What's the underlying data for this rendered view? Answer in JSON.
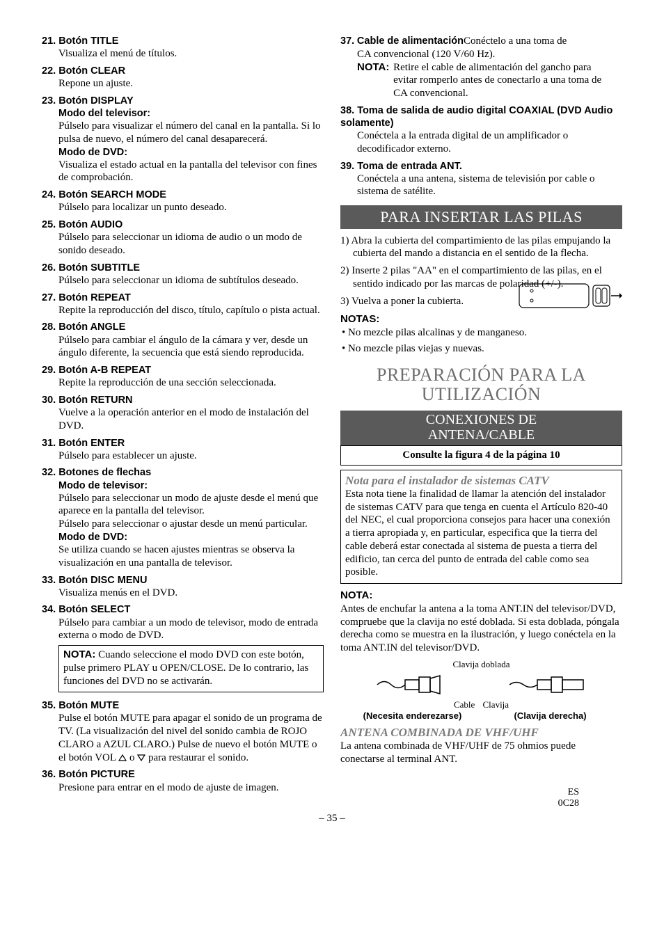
{
  "left_items": [
    {
      "num": "21.",
      "title": "Botón TITLE",
      "bodies": [
        "Visualiza el menú de títulos."
      ]
    },
    {
      "num": "22.",
      "title": "Botón CLEAR",
      "bodies": [
        "Repone un ajuste."
      ]
    },
    {
      "num": "23.",
      "title": "Botón DISPLAY",
      "subs": [
        {
          "sub": "Modo del televisor:",
          "bodies": [
            "Púlselo para visualizar el número del canal en la pantalla. Si lo pulsa de nuevo, el número del canal desaparecerá."
          ]
        },
        {
          "sub": "Modo de DVD:",
          "bodies": [
            "Visualiza el estado actual en la pantalla del televisor con fines de comprobación."
          ]
        }
      ]
    },
    {
      "num": "24.",
      "title": "Botón SEARCH MODE",
      "bodies": [
        "Púlselo para localizar un punto deseado."
      ]
    },
    {
      "num": "25.",
      "title": "Botón AUDIO",
      "bodies": [
        "Púlselo para seleccionar un idioma de audio o un modo de sonido deseado."
      ]
    },
    {
      "num": "26.",
      "title": "Botón SUBTITLE",
      "bodies": [
        "Púlselo para seleccionar un idioma de subtítulos deseado."
      ]
    },
    {
      "num": "27.",
      "title": "Botón REPEAT",
      "bodies": [
        "Repite la reproducción del disco, título, capítulo o pista actual."
      ]
    },
    {
      "num": "28.",
      "title": "Botón ANGLE",
      "bodies": [
        "Púlselo para cambiar el ángulo de la cámara y ver, desde un ángulo diferente, la secuencia que está siendo reproducida."
      ]
    },
    {
      "num": "29.",
      "title": "Botón A-B REPEAT",
      "bodies": [
        "Repite la reproducción de una sección seleccionada."
      ]
    },
    {
      "num": "30.",
      "title": "Botón RETURN",
      "bodies": [
        "Vuelve a la operación anterior en el modo de instalación del DVD."
      ]
    },
    {
      "num": "31.",
      "title": "Botón ENTER",
      "bodies": [
        "Púlselo para establecer un ajuste."
      ]
    },
    {
      "num": "32.",
      "title": "Botones de flechas",
      "subs": [
        {
          "sub": "Modo de televisor:",
          "bodies": [
            "Púlselo para seleccionar un modo de ajuste desde el menú que aparece en la pantalla del televisor.",
            "Púlselo para seleccionar o ajustar desde un menú particular."
          ]
        },
        {
          "sub": "Modo de DVD:",
          "bodies": [
            "Se utiliza cuando se hacen ajustes mientras se observa la visualización en una pantalla de televisor."
          ]
        }
      ]
    },
    {
      "num": "33.",
      "title": "Botón DISC MENU",
      "bodies": [
        "Visualiza menús en el DVD."
      ]
    },
    {
      "num": "34.",
      "title": "Botón SELECT",
      "bodies": [
        "Púlselo para cambiar a un modo de televisor, modo de entrada externa o modo de DVD."
      ],
      "notebox": {
        "label": "NOTA:",
        "text": "Cuando seleccione el modo DVD con este botón, pulse primero PLAY u OPEN/CLOSE. De lo contrario, las funciones del DVD no se activarán."
      }
    },
    {
      "num": "35.",
      "title": "Botón MUTE",
      "bodies_html": "Pulse el botón MUTE para apagar el sonido de un programa de TV. (La visualización del nivel del sonido cambia de ROJO CLARO a AZUL CLARO.) Pulse de nuevo el botón MUTE o el botón VOL <TRIUP> o <TRIDN> para restaurar el sonido."
    },
    {
      "num": "36.",
      "title": "Botón PICTURE",
      "bodies": [
        "Presione para entrar en el modo de ajuste de imagen."
      ]
    }
  ],
  "right_items": [
    {
      "num": "37.",
      "title_html": "<span class=\"item-head\">Cable de alimentación</span>Conéctelo a una toma de",
      "bodies": [
        "CA convencional (120 V/60 Hz)."
      ],
      "nota_indent": {
        "label": "NOTA:",
        "text": "Retire el cable de alimentación del gancho para evitar romperlo antes de conectarlo a una toma de CA convencional."
      }
    },
    {
      "num": "38.",
      "title": "Toma de salida de audio digital COAXIAL (DVD Audio solamente)",
      "bodies": [
        "Conéctela a la entrada digital de un amplificador o decodificador externo."
      ]
    },
    {
      "num": "39.",
      "title": "Toma de entrada ANT.",
      "bodies": [
        "Conéctela a una antena, sistema de televisión por cable o sistema de satélite."
      ]
    }
  ],
  "banner_pilas": "PARA INSERTAR LAS PILAS",
  "pilas_steps": [
    "1) Abra la cubierta del compartimiento de las pilas empujando la cubierta del mando a distancia en el sentido de la flecha.",
    "2) Inserte 2 pilas \"AA\" en el compartimiento de las pilas, en el sentido indicado por las marcas de polaridad (+/-).",
    "3) Vuelva a poner la cubierta."
  ],
  "notas_label": "NOTAS:",
  "notas_bullets": [
    "No mezcle pilas alcalinas y de manganeso.",
    "No mezcle pilas viejas y nuevas."
  ],
  "prep_title_a": "PREPARACIÓN PARA LA",
  "prep_title_b": "UTILIZACIÓN",
  "conex_a": "CONEXIONES DE",
  "conex_b": "ANTENA/CABLE",
  "consulte": "Consulte la figura 4 de la página 10",
  "catv_title": "Nota para el instalador de sistemas CATV",
  "catv_body": "Esta nota tiene la finalidad de llamar la atención del instalador de sistemas CATV para que tenga en cuenta el Artículo 820-40 del NEC, el cual proporciona consejos para hacer una conexión a tierra apropiada y, en particular, especifica que la tierra del cable deberá estar conectada al sistema de puesta a tierra del edificio, tan cerca del punto de entrada del cable como sea posible.",
  "nota2_label": "NOTA:",
  "nota2_body": "Antes de enchufar la antena a la toma ANT.IN del televisor/DVD, compruebe que la clavija no esté doblada. Si esta doblada, póngala derecha como se muestra en la ilustración, y luego conéctela en la toma ANT.IN del televisor/DVD.",
  "diag_top": "Clavija doblada",
  "diag_cable": "Cable",
  "diag_clavija": "Clavija",
  "diag_left_caption": "(Necesita enderezarse)",
  "diag_right_caption": "(Clavija derecha)",
  "vhf_title": "ANTENA COMBINADA DE VHF/UHF",
  "vhf_body": "La antena combinada de VHF/UHF de 75 ohmios puede conectarse al terminal ANT.",
  "page_num": "– 35 –",
  "es": "ES",
  "code": "0C28"
}
